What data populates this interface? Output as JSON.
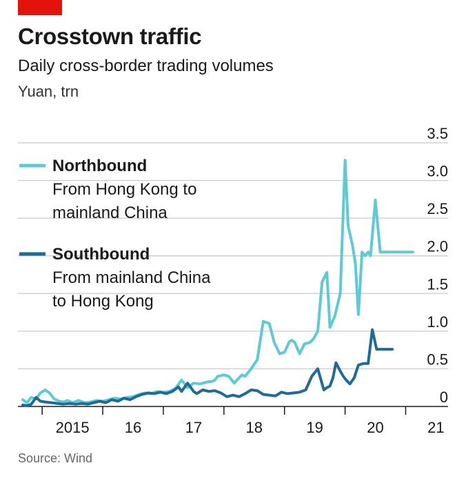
{
  "header": {
    "title": "Crosstown traffic",
    "subtitle": "Daily cross-border trading volumes",
    "unit": "Yuan, trn"
  },
  "footer": {
    "source": "Source: Wind"
  },
  "colors": {
    "accent_tag": "#e3120b",
    "northbound": "#5ccbd6",
    "southbound": "#1e6a9a",
    "grid": "#c8c8c8"
  },
  "chart_data": {
    "type": "line",
    "title": "Crosstown traffic",
    "subtitle": "Daily cross-border trading volumes",
    "ylabel": "Yuan, trn",
    "ylim": [
      0,
      3.5
    ],
    "yticks": [
      0,
      0.5,
      1.0,
      1.5,
      2.0,
      2.5,
      3.0,
      3.5
    ],
    "ytick_labels": [
      "0",
      "0.5",
      "1.0",
      "1.5",
      "2.0",
      "2.5",
      "3.0",
      "3.5"
    ],
    "xlim": [
      2014.6,
      2021.7
    ],
    "xticks": [
      2015,
      2016,
      2017,
      2018,
      2019,
      2020,
      2021
    ],
    "xtick_labels": [
      "2015",
      "16",
      "17",
      "18",
      "19",
      "20",
      "21"
    ],
    "grid": true,
    "legend_position": "top-left",
    "series": [
      {
        "name": "Northbound",
        "description": [
          "From Hong Kong to",
          "mainland China"
        ],
        "x": [
          2014.68,
          2014.75,
          2014.82,
          2014.9,
          2014.97,
          2015.05,
          2015.12,
          2015.2,
          2015.28,
          2015.35,
          2015.42,
          2015.5,
          2015.6,
          2015.7,
          2015.8,
          2015.9,
          2016.0,
          2016.1,
          2016.2,
          2016.3,
          2016.4,
          2016.5,
          2016.6,
          2016.7,
          2016.8,
          2016.9,
          2017.0,
          2017.1,
          2017.2,
          2017.3,
          2017.4,
          2017.5,
          2017.6,
          2017.7,
          2017.75,
          2017.8,
          2017.85,
          2017.9,
          2018.0,
          2018.08,
          2018.17,
          2018.25,
          2018.3,
          2018.35,
          2018.45,
          2018.55,
          2018.65,
          2018.75,
          2018.83,
          2018.92,
          2019.0,
          2019.08,
          2019.12,
          2019.17,
          2019.25,
          2019.33,
          2019.42,
          2019.48,
          2019.55,
          2019.62,
          2019.7,
          2019.75,
          2019.83,
          2019.92,
          2020.0,
          2020.05,
          2020.12,
          2020.17,
          2020.22,
          2020.28,
          2020.33,
          2020.38,
          2020.42,
          2020.5,
          2020.58,
          2020.63,
          2020.68,
          2020.75,
          2020.8,
          2020.85,
          2020.92,
          2020.97,
          2021.05,
          2021.12
        ],
        "values": [
          0.09,
          0.05,
          0.12,
          0.1,
          0.18,
          0.22,
          0.18,
          0.1,
          0.07,
          0.06,
          0.08,
          0.05,
          0.08,
          0.05,
          0.06,
          0.08,
          0.07,
          0.09,
          0.11,
          0.1,
          0.12,
          0.13,
          0.16,
          0.18,
          0.17,
          0.2,
          0.19,
          0.2,
          0.24,
          0.35,
          0.25,
          0.31,
          0.3,
          0.32,
          0.33,
          0.33,
          0.35,
          0.4,
          0.42,
          0.4,
          0.31,
          0.38,
          0.42,
          0.4,
          0.5,
          0.62,
          1.13,
          1.1,
          0.85,
          0.7,
          0.72,
          0.86,
          0.88,
          0.85,
          0.7,
          0.83,
          0.85,
          0.9,
          1.0,
          1.65,
          1.78,
          1.05,
          1.2,
          1.5,
          3.27,
          2.4,
          2.15,
          1.9,
          1.22,
          2.05,
          2.0,
          2.05,
          2.0,
          2.74,
          2.05,
          2.05,
          2.05,
          2.05,
          2.05,
          2.05,
          2.05,
          2.05,
          2.05,
          2.05
        ]
      },
      {
        "name": "Southbound",
        "description": [
          "From mainland China",
          "to Hong Kong"
        ],
        "x": [
          2014.68,
          2014.75,
          2014.82,
          2014.9,
          2014.97,
          2015.05,
          2015.15,
          2015.25,
          2015.35,
          2015.45,
          2015.55,
          2015.65,
          2015.75,
          2015.85,
          2015.95,
          2016.05,
          2016.15,
          2016.25,
          2016.35,
          2016.45,
          2016.55,
          2016.65,
          2016.75,
          2016.85,
          2016.95,
          2017.05,
          2017.15,
          2017.25,
          2017.3,
          2017.4,
          2017.5,
          2017.55,
          2017.65,
          2017.75,
          2017.85,
          2017.95,
          2018.05,
          2018.15,
          2018.25,
          2018.35,
          2018.45,
          2018.55,
          2018.65,
          2018.75,
          2018.85,
          2018.95,
          2019.05,
          2019.15,
          2019.25,
          2019.35,
          2019.45,
          2019.55,
          2019.65,
          2019.7,
          2019.75,
          2019.8,
          2019.85,
          2019.92,
          2019.97,
          2020.02,
          2020.08,
          2020.15,
          2020.22,
          2020.3,
          2020.38,
          2020.45,
          2020.52,
          2020.58,
          2020.65,
          2020.72,
          2020.78
        ],
        "values": [
          0.02,
          0.01,
          0.03,
          0.12,
          0.07,
          0.06,
          0.05,
          0.04,
          0.03,
          0.04,
          0.03,
          0.04,
          0.03,
          0.05,
          0.07,
          0.05,
          0.09,
          0.07,
          0.11,
          0.09,
          0.13,
          0.16,
          0.18,
          0.17,
          0.19,
          0.17,
          0.2,
          0.26,
          0.2,
          0.31,
          0.2,
          0.17,
          0.22,
          0.2,
          0.21,
          0.18,
          0.13,
          0.15,
          0.13,
          0.17,
          0.22,
          0.21,
          0.16,
          0.15,
          0.14,
          0.19,
          0.17,
          0.18,
          0.19,
          0.22,
          0.4,
          0.5,
          0.22,
          0.25,
          0.27,
          0.38,
          0.58,
          0.47,
          0.4,
          0.35,
          0.3,
          0.38,
          0.55,
          0.57,
          0.57,
          1.02,
          0.76,
          0.76,
          0.76,
          0.76,
          0.76
        ]
      }
    ]
  }
}
